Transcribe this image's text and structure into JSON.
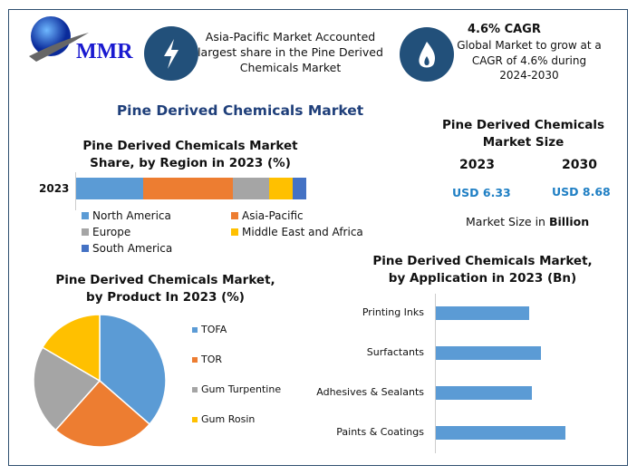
{
  "logo": {
    "text": "MMR"
  },
  "highlights": [
    {
      "icon": "lightning-icon",
      "text": "Asia-Pacific Market Accounted largest share in the Pine Derived Chemicals Market"
    },
    {
      "icon": "flame-icon",
      "heading": "4.6% CAGR",
      "text": "Global Market to grow at a CAGR of 4.6% during 2024-2030"
    }
  ],
  "main_title": "Pine Derived Chemicals Market",
  "market_size": {
    "title": "Pine Derived Chemicals Market Size",
    "years": [
      "2023",
      "2030"
    ],
    "values": [
      "USD 6.33",
      "USD 8.68"
    ],
    "note_prefix": "Market Size in ",
    "note_bold": "Billion",
    "value_color": "#1f7fc4"
  },
  "chart_data": [
    {
      "type": "bar",
      "orientation": "horizontal",
      "stacked": true,
      "title": "Pine Derived Chemicals Market Share, by Region in 2023 (%)",
      "categories": [
        "2023"
      ],
      "series": [
        {
          "name": "North America",
          "values": [
            29
          ],
          "color": "#5b9bd5"
        },
        {
          "name": "Asia-Pacific",
          "values": [
            39
          ],
          "color": "#ed7d31"
        },
        {
          "name": "Europe",
          "values": [
            16
          ],
          "color": "#a5a5a5"
        },
        {
          "name": "Middle East and Africa",
          "values": [
            10
          ],
          "color": "#ffc000"
        },
        {
          "name": "South America",
          "values": [
            6
          ],
          "color": "#4472c4"
        }
      ],
      "legend": "bottom"
    },
    {
      "type": "pie",
      "title": "Pine Derived Chemicals Market, by Product In 2023 (%)",
      "categories": [
        "TOFA",
        "TOR",
        "Gum Turpentine",
        "Gum Rosin"
      ],
      "values": [
        36.4,
        25.2,
        21.8,
        16.6
      ],
      "colors": [
        "#5b9bd5",
        "#ed7d31",
        "#a5a5a5",
        "#ffc000"
      ],
      "legend": "right"
    },
    {
      "type": "bar",
      "orientation": "horizontal",
      "title": "Pine Derived Chemicals Market, by Application in 2023 (Bn)",
      "categories": [
        "Printing Inks",
        "Surfactants",
        "Adhesives & Sealants",
        "Paints & Coatings"
      ],
      "values": [
        1.39,
        1.57,
        1.43,
        1.93
      ],
      "color": "#5b9bd5"
    }
  ]
}
